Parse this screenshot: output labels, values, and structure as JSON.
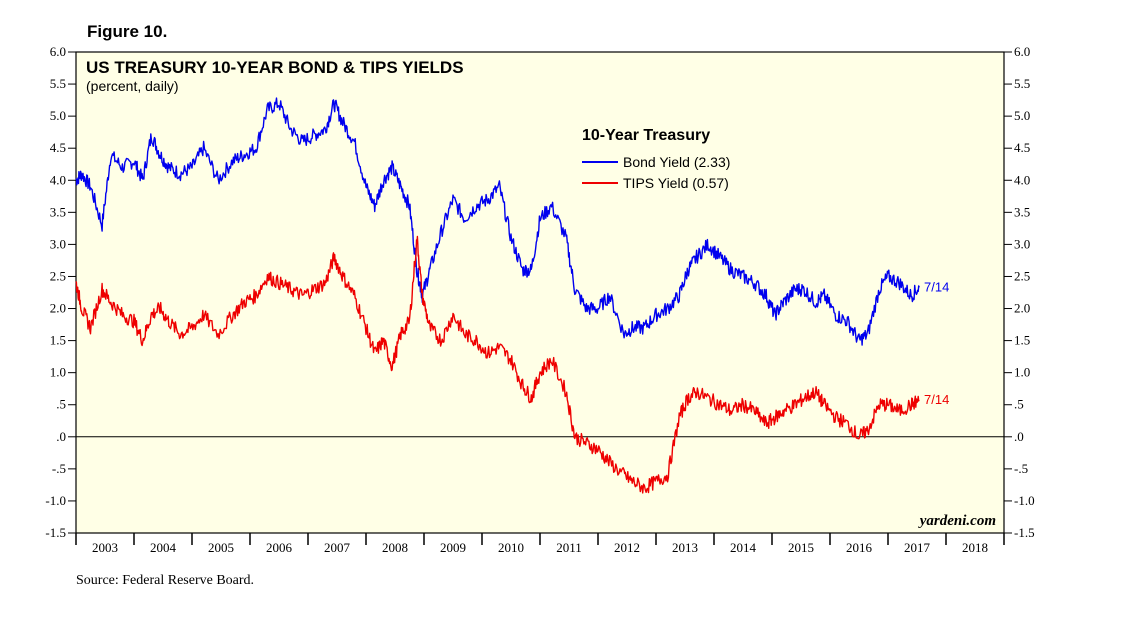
{
  "figure_label": "Figure 10.",
  "source": "Source: Federal Reserve Board.",
  "colors": {
    "panel": "#ffffe6",
    "bond": "#0000ee",
    "tips": "#ee0000",
    "axis": "#000000"
  },
  "chart_data": {
    "type": "line",
    "title": "US TREASURY 10-YEAR BOND & TIPS YIELDS",
    "subtitle": "(percent, daily)",
    "legend_title": "10-Year Treasury",
    "legend_position": "top-center",
    "watermark": "yardeni.com",
    "ylim": [
      -1.5,
      6.0
    ],
    "xlim": [
      2003.0,
      2019.0
    ],
    "y_ticks": [
      -1.5,
      -1.0,
      -0.5,
      0.0,
      0.5,
      1.0,
      1.5,
      2.0,
      2.5,
      3.0,
      3.5,
      4.0,
      4.5,
      5.0,
      5.5,
      6.0
    ],
    "y_tick_labels": [
      "-1.5",
      "-1.0",
      "-.5",
      ".0",
      ".5",
      "1.0",
      "1.5",
      "2.0",
      "2.5",
      "3.0",
      "3.5",
      "4.0",
      "4.5",
      "5.0",
      "5.5",
      "6.0"
    ],
    "x_tick_labels": [
      "2003",
      "2004",
      "2005",
      "2006",
      "2007",
      "2008",
      "2009",
      "2010",
      "2011",
      "2012",
      "2013",
      "2014",
      "2015",
      "2016",
      "2017",
      "2018"
    ],
    "zero_line": 0.0,
    "series": [
      {
        "name": "Bond Yield (2.33)",
        "color": "#0000ee",
        "end_label": "7/14",
        "x": [
          2003.0,
          2003.1,
          2003.25,
          2003.45,
          2003.6,
          2003.8,
          2004.0,
          2004.15,
          2004.3,
          2004.45,
          2004.6,
          2004.8,
          2005.0,
          2005.2,
          2005.45,
          2005.7,
          2005.9,
          2006.1,
          2006.3,
          2006.5,
          2006.7,
          2006.9,
          2007.1,
          2007.3,
          2007.45,
          2007.6,
          2007.8,
          2008.0,
          2008.15,
          2008.3,
          2008.45,
          2008.6,
          2008.75,
          2008.88,
          2008.97,
          2009.1,
          2009.3,
          2009.5,
          2009.7,
          2009.9,
          2010.1,
          2010.3,
          2010.5,
          2010.7,
          2010.85,
          2011.0,
          2011.2,
          2011.45,
          2011.6,
          2011.8,
          2012.0,
          2012.2,
          2012.45,
          2012.6,
          2012.8,
          2013.0,
          2013.2,
          2013.4,
          2013.55,
          2013.7,
          2013.9,
          2014.1,
          2014.3,
          2014.5,
          2014.7,
          2014.9,
          2015.05,
          2015.2,
          2015.4,
          2015.55,
          2015.75,
          2015.9,
          2016.1,
          2016.3,
          2016.5,
          2016.65,
          2016.85,
          2017.0,
          2017.2,
          2017.4,
          2017.54
        ],
        "y": [
          4.0,
          4.1,
          3.9,
          3.3,
          4.4,
          4.2,
          4.3,
          4.0,
          4.7,
          4.4,
          4.2,
          4.1,
          4.2,
          4.5,
          4.0,
          4.3,
          4.4,
          4.5,
          5.1,
          5.2,
          4.8,
          4.6,
          4.7,
          4.8,
          5.2,
          4.9,
          4.6,
          3.9,
          3.6,
          4.0,
          4.2,
          3.9,
          3.6,
          2.6,
          2.2,
          2.6,
          3.2,
          3.7,
          3.4,
          3.6,
          3.7,
          3.9,
          3.1,
          2.6,
          2.6,
          3.4,
          3.6,
          3.1,
          2.3,
          2.0,
          2.0,
          2.2,
          1.6,
          1.7,
          1.7,
          1.9,
          2.0,
          2.2,
          2.6,
          2.8,
          3.0,
          2.8,
          2.6,
          2.5,
          2.4,
          2.2,
          1.9,
          2.1,
          2.3,
          2.3,
          2.1,
          2.2,
          1.9,
          1.8,
          1.5,
          1.6,
          2.3,
          2.5,
          2.4,
          2.2,
          2.33
        ]
      },
      {
        "name": "TIPS Yield (0.57)",
        "color": "#ee0000",
        "end_label": "7/14",
        "x": [
          2003.0,
          2003.1,
          2003.25,
          2003.45,
          2003.6,
          2003.8,
          2004.0,
          2004.15,
          2004.3,
          2004.45,
          2004.6,
          2004.8,
          2005.0,
          2005.2,
          2005.45,
          2005.7,
          2005.9,
          2006.1,
          2006.3,
          2006.5,
          2006.7,
          2006.9,
          2007.1,
          2007.3,
          2007.45,
          2007.6,
          2007.8,
          2008.0,
          2008.15,
          2008.3,
          2008.45,
          2008.6,
          2008.75,
          2008.88,
          2008.97,
          2009.1,
          2009.3,
          2009.5,
          2009.7,
          2009.9,
          2010.1,
          2010.3,
          2010.5,
          2010.7,
          2010.85,
          2011.0,
          2011.2,
          2011.45,
          2011.6,
          2011.8,
          2012.0,
          2012.2,
          2012.45,
          2012.6,
          2012.8,
          2013.0,
          2013.2,
          2013.4,
          2013.55,
          2013.7,
          2013.9,
          2014.1,
          2014.3,
          2014.5,
          2014.7,
          2014.9,
          2015.05,
          2015.2,
          2015.4,
          2015.55,
          2015.75,
          2015.9,
          2016.1,
          2016.3,
          2016.5,
          2016.65,
          2016.85,
          2017.0,
          2017.2,
          2017.4,
          2017.54
        ],
        "y": [
          2.4,
          2.0,
          1.7,
          2.3,
          2.1,
          1.9,
          1.8,
          1.5,
          1.9,
          2.0,
          1.8,
          1.6,
          1.7,
          1.9,
          1.6,
          1.9,
          2.1,
          2.2,
          2.5,
          2.4,
          2.3,
          2.2,
          2.3,
          2.4,
          2.8,
          2.5,
          2.2,
          1.7,
          1.3,
          1.5,
          1.1,
          1.6,
          1.8,
          3.1,
          2.2,
          1.7,
          1.5,
          1.9,
          1.6,
          1.5,
          1.3,
          1.4,
          1.2,
          0.8,
          0.6,
          1.0,
          1.2,
          0.7,
          0.0,
          -0.1,
          -0.2,
          -0.4,
          -0.6,
          -0.7,
          -0.8,
          -0.7,
          -0.6,
          0.3,
          0.6,
          0.7,
          0.6,
          0.5,
          0.4,
          0.5,
          0.4,
          0.2,
          0.3,
          0.4,
          0.5,
          0.6,
          0.7,
          0.5,
          0.3,
          0.2,
          0.0,
          0.1,
          0.5,
          0.5,
          0.4,
          0.5,
          0.57
        ]
      }
    ]
  }
}
